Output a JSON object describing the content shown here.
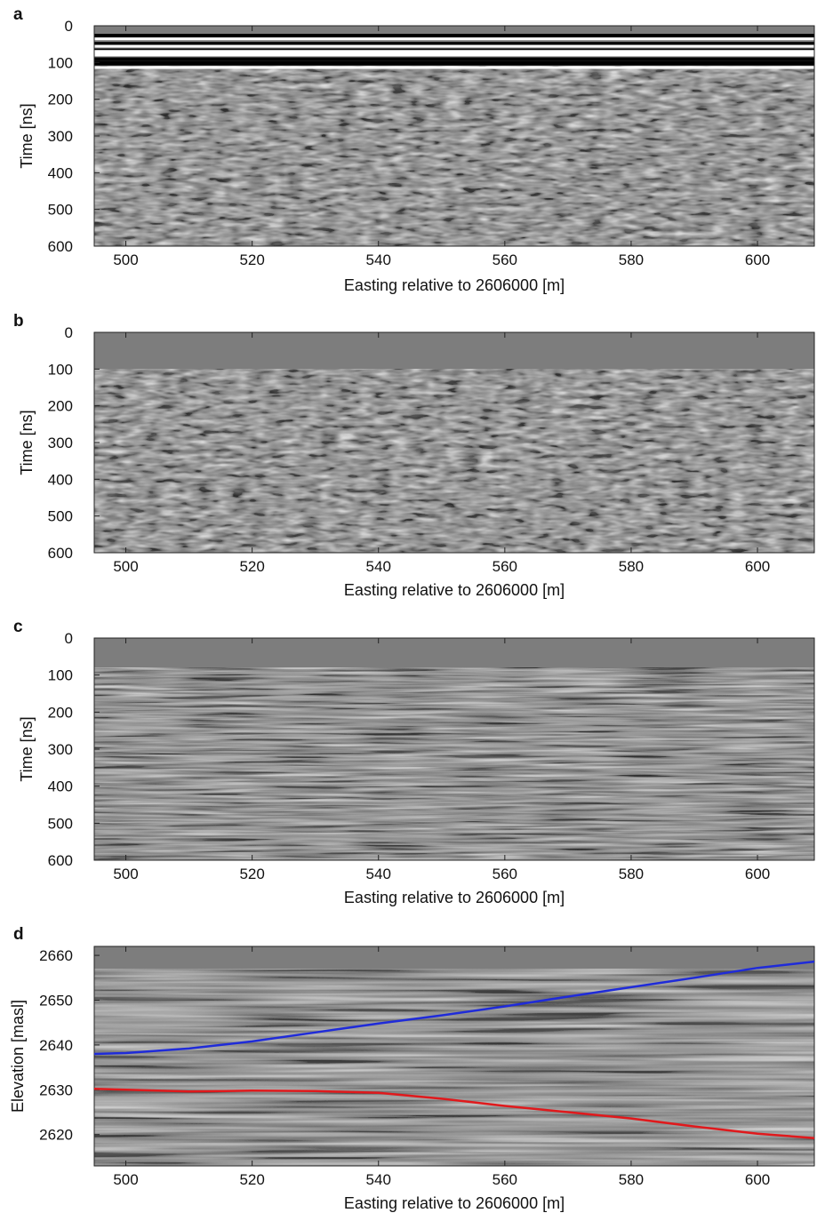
{
  "chart_data": [
    {
      "type": "heatmap",
      "panel_label": "a",
      "xlabel": "Easting relative to 2606000 [m]",
      "ylabel": "Time [ns]",
      "xlim": [
        495,
        609
      ],
      "ylim": [
        0,
        600
      ],
      "y_reversed": true,
      "xticks": [
        500,
        520,
        540,
        560,
        580,
        600
      ],
      "yticks": [
        0,
        100,
        200,
        300,
        400,
        500,
        600
      ],
      "colormap": "grayscale",
      "grid": false,
      "description_values": {
        "air_wave_bands_ns": [
          20,
          120
        ],
        "first_reflection_ns": [
          120,
          160
        ]
      }
    },
    {
      "type": "heatmap",
      "panel_label": "b",
      "xlabel": "Easting relative to 2606000 [m]",
      "ylabel": "Time [ns]",
      "xlim": [
        495,
        609
      ],
      "ylim": [
        0,
        600
      ],
      "y_reversed": true,
      "xticks": [
        500,
        520,
        540,
        560,
        580,
        600
      ],
      "yticks": [
        0,
        100,
        200,
        300,
        400,
        500,
        600
      ],
      "colormap": "grayscale",
      "grid": false
    },
    {
      "type": "heatmap",
      "panel_label": "c",
      "xlabel": "Easting relative to 2606000 [m]",
      "ylabel": "Time [ns]",
      "xlim": [
        495,
        609
      ],
      "ylim": [
        0,
        600
      ],
      "y_reversed": true,
      "xticks": [
        500,
        520,
        540,
        560,
        580,
        600
      ],
      "yticks": [
        0,
        100,
        200,
        300,
        400,
        500,
        600
      ],
      "colormap": "grayscale",
      "grid": false
    },
    {
      "type": "heatmap",
      "panel_label": "d",
      "xlabel": "Easting relative to 2606000 [m]",
      "ylabel": "Elevation [masl]",
      "xlim": [
        495,
        609
      ],
      "ylim": [
        2613,
        2662
      ],
      "y_reversed": false,
      "xticks": [
        500,
        520,
        540,
        560,
        580,
        600
      ],
      "yticks": [
        2620,
        2630,
        2640,
        2650,
        2660
      ],
      "colormap": "grayscale",
      "grid": false,
      "series": [
        {
          "color": "#1f2bd9",
          "x": [
            495,
            500,
            510,
            520,
            530,
            540,
            550,
            560,
            570,
            580,
            590,
            600,
            609
          ],
          "y": [
            2638.0,
            2638.2,
            2639.2,
            2640.8,
            2642.8,
            2644.8,
            2646.6,
            2648.6,
            2650.8,
            2652.9,
            2655.0,
            2657.2,
            2658.6
          ]
        },
        {
          "color": "#e0191c",
          "x": [
            495,
            500,
            510,
            520,
            530,
            540,
            550,
            560,
            570,
            580,
            590,
            600,
            609
          ],
          "y": [
            2630.2,
            2630.0,
            2629.6,
            2629.8,
            2629.7,
            2629.3,
            2628.0,
            2626.4,
            2625.0,
            2623.6,
            2621.8,
            2620.2,
            2619.2
          ]
        }
      ]
    }
  ]
}
